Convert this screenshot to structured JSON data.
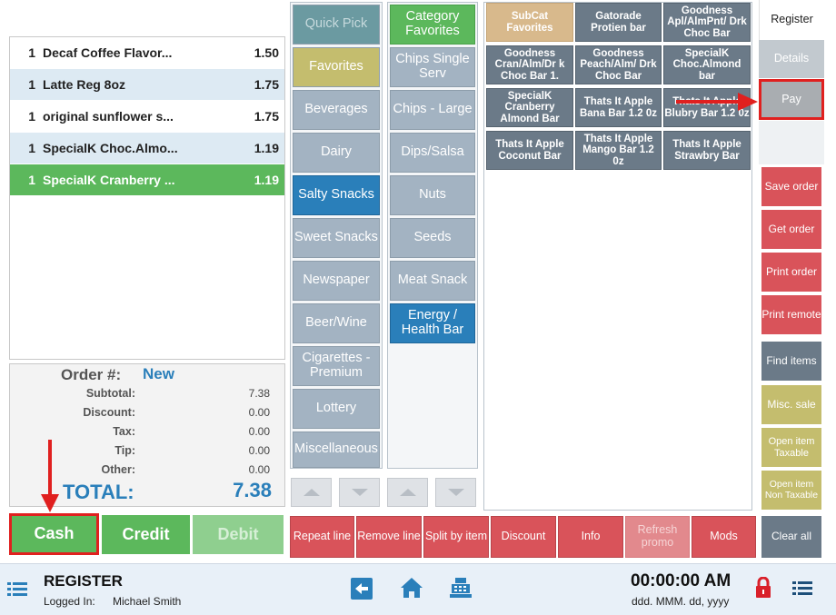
{
  "order_items": [
    {
      "qty": "1",
      "name": "Decaf Coffee Flavor...",
      "price": "1.50"
    },
    {
      "qty": "1",
      "name": "Latte Reg 8oz",
      "price": "1.75"
    },
    {
      "qty": "1",
      "name": "original sunflower s...",
      "price": "1.75"
    },
    {
      "qty": "1",
      "name": "SpecialK Choc.Almo...",
      "price": "1.19"
    },
    {
      "qty": "1",
      "name": "SpecialK Cranberry ...",
      "price": "1.19"
    }
  ],
  "totals": {
    "order_label": "Order #:",
    "order_value": "New",
    "subtotal_label": "Subtotal:",
    "subtotal": "7.38",
    "discount_label": "Discount:",
    "discount": "0.00",
    "tax_label": "Tax:",
    "tax": "0.00",
    "tip_label": "Tip:",
    "tip": "0.00",
    "other_label": "Other:",
    "other": "0.00",
    "total_label": "TOTAL:",
    "total": "7.38"
  },
  "payment": {
    "cash": "Cash",
    "credit": "Credit",
    "debit": "Debit"
  },
  "categories_col1": [
    "Quick Pick",
    "Favorites",
    "Beverages",
    "Dairy",
    "Salty Snacks",
    "Sweet Snacks",
    "Newspaper",
    "Beer/Wine",
    "Cigarettes - Premium",
    "Lottery",
    "Miscellaneous"
  ],
  "categories_col2": [
    "Category Favorites",
    "Chips Single Serv",
    "Chips - Large",
    "Dips/Salsa",
    "Nuts",
    "Seeds",
    "Meat Snack",
    "Energy / Health Bar"
  ],
  "products": [
    "SubCat Favorites",
    "Gatorade Protien bar",
    "Goodness Apl/AlmPnt/ Drk Choc Bar",
    "Goodness Cran/Alm/Dr k Choc Bar 1.",
    "Goodness Peach/Alm/ Drk Choc Bar",
    "SpecialK Choc.Almond bar",
    "SpecialK Cranberry Almond Bar",
    "Thats It Apple Bana Bar 1.2 0z",
    "Thats It Apple Blubry Bar 1.2 0z",
    "Thats It Apple Coconut Bar",
    "Thats It Apple Mango Bar 1.2 0z",
    "Thats It Apple Strawbry Bar"
  ],
  "actions": [
    "Repeat line",
    "Remove line",
    "Split by item",
    "Discount",
    "Info",
    "Refresh promo",
    "Mods"
  ],
  "side": {
    "register": "Register",
    "details": "Details",
    "pay": "Pay",
    "save_order": "Save order",
    "get_order": "Get order",
    "print_order": "Print order",
    "print_remote": "Print remote",
    "find_items": "Find items",
    "misc_sale": "Misc. sale",
    "open_item_taxable": "Open item Taxable",
    "open_item_non_taxable": "Open item Non Taxable",
    "clear_all": "Clear all"
  },
  "footer": {
    "title": "REGISTER",
    "logged_in_label": "Logged In:",
    "user": "Michael Smith",
    "time": "00:00:00 AM",
    "date_format": "ddd. MMM. dd, yyyy"
  },
  "colors": {
    "accent_blue": "#2a7fba",
    "selected_green": "#5cb85c",
    "action_red": "#d9535a",
    "highlight_red": "#e0201f",
    "category_gray": "#a3b3c2",
    "product_dark": "#6b7a88",
    "subcat_tan": "#d8b98c",
    "olive": "#c4bd6e"
  },
  "icons": [
    "menu-icon",
    "back-arrow-icon",
    "home-icon",
    "cash-register-icon",
    "lock-icon",
    "list-icon"
  ]
}
